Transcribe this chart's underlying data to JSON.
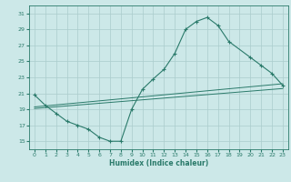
{
  "xlabel": "Humidex (Indice chaleur)",
  "ylabel": "",
  "bg_color": "#cce8e8",
  "grid_color": "#aacccc",
  "line_color": "#2a7a6a",
  "xlim": [
    -0.5,
    23.5
  ],
  "ylim": [
    14.0,
    32.0
  ],
  "yticks": [
    15,
    17,
    19,
    21,
    23,
    25,
    27,
    29,
    31
  ],
  "xticks": [
    0,
    1,
    2,
    3,
    4,
    5,
    6,
    7,
    8,
    9,
    10,
    11,
    12,
    13,
    14,
    15,
    16,
    17,
    18,
    19,
    20,
    21,
    22,
    23
  ],
  "curve1_x": [
    0,
    1,
    2,
    3,
    4,
    5,
    6,
    7,
    8,
    9,
    10,
    11,
    12,
    13,
    14,
    15,
    16,
    17,
    18,
    20,
    21,
    22,
    23
  ],
  "curve1_y": [
    20.8,
    19.5,
    18.5,
    17.5,
    17.0,
    16.5,
    15.5,
    15.0,
    15.0,
    19.0,
    21.5,
    22.8,
    24.0,
    26.0,
    29.0,
    30.0,
    30.5,
    29.5,
    27.5,
    25.5,
    24.5,
    23.5,
    22.0
  ],
  "curve2_x": [
    0,
    23
  ],
  "curve2_y": [
    19.3,
    22.2
  ],
  "curve3_x": [
    0,
    23
  ],
  "curve3_y": [
    19.1,
    21.6
  ],
  "marker_x": [
    0,
    1,
    2,
    3,
    4,
    5,
    6,
    7,
    8,
    9,
    10,
    11,
    12,
    13,
    14,
    15,
    16,
    17,
    18,
    20,
    21,
    22,
    23
  ],
  "marker_y": [
    20.8,
    19.5,
    18.5,
    17.5,
    17.0,
    16.5,
    15.5,
    15.0,
    15.0,
    19.0,
    21.5,
    22.8,
    24.0,
    26.0,
    29.0,
    30.0,
    30.5,
    29.5,
    27.5,
    25.5,
    24.5,
    23.5,
    22.0
  ]
}
